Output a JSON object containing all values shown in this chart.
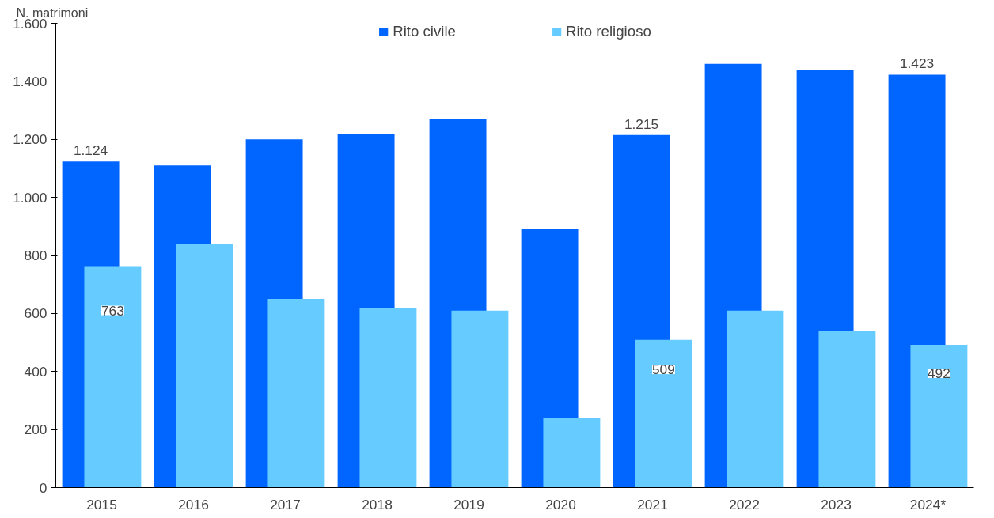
{
  "chart_data": {
    "type": "bar",
    "ylabel": "N. matrimoni",
    "categories": [
      "2015",
      "2016",
      "2017",
      "2018",
      "2019",
      "2020",
      "2021",
      "2022",
      "2023",
      "2024*"
    ],
    "series": [
      {
        "name": "Rito civile",
        "color": "#0066ff",
        "values": [
          1124,
          1110,
          1200,
          1220,
          1270,
          890,
          1215,
          1460,
          1440,
          1423
        ],
        "value_labels": [
          "1.124",
          null,
          null,
          null,
          null,
          null,
          "1.215",
          null,
          null,
          "1.423"
        ]
      },
      {
        "name": "Rito religioso",
        "color": "#66ccff",
        "values": [
          763,
          840,
          650,
          620,
          610,
          240,
          509,
          610,
          540,
          492
        ],
        "value_labels": [
          "763",
          null,
          null,
          null,
          null,
          null,
          "509",
          null,
          null,
          "492"
        ]
      }
    ],
    "ylim": [
      0,
      1600
    ],
    "yticks": [
      0,
      {
        "value": 200,
        "label": "200"
      },
      {
        "value": 400,
        "label": "400"
      },
      {
        "value": 600,
        "label": "600"
      },
      {
        "value": 800,
        "label": "800"
      },
      {
        "value": 1000,
        "label": "1.000"
      },
      {
        "value": 1200,
        "label": "1.200"
      },
      {
        "value": 1400,
        "label": "1.400"
      },
      {
        "value": 1600,
        "label": "1.600"
      }
    ],
    "grid": false,
    "legend": "top"
  }
}
